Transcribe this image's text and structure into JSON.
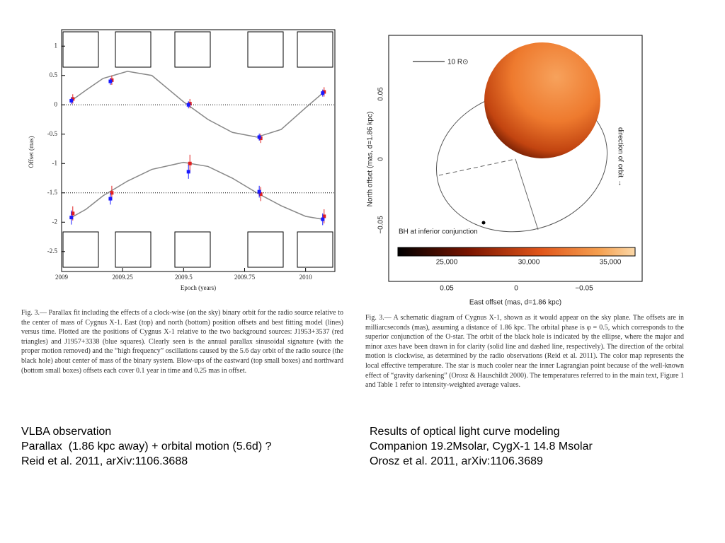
{
  "chart_data": {
    "type": "scatter",
    "x_label": "Epoch (years)",
    "y_label": "Offset (mas)",
    "xlim": [
      2009,
      2010.12
    ],
    "xticks": [
      2009,
      2009.25,
      2009.5,
      2009.75,
      2010
    ],
    "ylim": [
      -2.84,
      1.28
    ],
    "yticks": [
      1,
      0.5,
      0,
      -0.5,
      -1,
      -1.5,
      -2,
      -2.5
    ],
    "hlines": [
      0,
      -1.5
    ],
    "series": [
      {
        "style": "line",
        "color": "#888888",
        "x": [
          2009.04,
          2009.1,
          2009.17,
          2009.27,
          2009.37,
          2009.5,
          2009.6,
          2009.7,
          2009.8,
          2009.9,
          2010,
          2010.07
        ],
        "values": [
          0.07,
          0.25,
          0.45,
          0.57,
          0.5,
          0.05,
          -0.25,
          -0.47,
          -0.55,
          -0.42,
          -0.05,
          0.2
        ]
      },
      {
        "style": "line",
        "color": "#888888",
        "x": [
          2009.04,
          2009.1,
          2009.17,
          2009.27,
          2009.37,
          2009.5,
          2009.6,
          2009.7,
          2009.8,
          2009.9,
          2010,
          2010.07
        ],
        "values": [
          -1.92,
          -1.78,
          -1.55,
          -1.3,
          -1.1,
          -0.98,
          -1.05,
          -1.25,
          -1.5,
          -1.72,
          -1.9,
          -1.95
        ]
      },
      {
        "style": "points",
        "color": "#e02020",
        "x": [
          2009.04,
          2009.2,
          2009.52,
          2009.81,
          2010.07,
          2009.04,
          2009.2,
          2009.52,
          2009.81,
          2010.07
        ],
        "values": [
          0.1,
          0.42,
          0.02,
          -0.57,
          0.22,
          -1.85,
          -1.5,
          -1.0,
          -1.52,
          -1.9
        ],
        "errors": [
          0.08,
          0.08,
          0.08,
          0.08,
          0.08,
          0.12,
          0.12,
          0.15,
          0.12,
          0.12
        ]
      },
      {
        "style": "points",
        "color": "#1a1aff",
        "x": [
          2009.04,
          2009.2,
          2009.52,
          2009.81,
          2010.07,
          2009.04,
          2009.2,
          2009.52,
          2009.81,
          2010.07
        ],
        "values": [
          0.07,
          0.4,
          0.0,
          -0.55,
          0.2,
          -1.92,
          -1.6,
          -1.14,
          -1.48,
          -1.95
        ],
        "errors": [
          0.06,
          0.06,
          0.06,
          0.06,
          0.06,
          0.12,
          0.1,
          0.12,
          0.1,
          0.1
        ]
      }
    ]
  },
  "left_caption": "Fig. 3.— Parallax fit including the effects of a clock-wise (on the sky) binary orbit for the radio source relative to the center of mass of Cygnus X-1. East (top) and north (bottom) position offsets and best fitting model (lines) versus time. Plotted are the positions of Cygnus X-1 relative to the two background sources: J1953+3537 (red triangles) and J1957+3338 (blue squares). Clearly seen is the annual parallax sinusoidal signature (with the proper motion removed) and the “high frequency” oscillations caused by the 5.6 day orbit of the radio source (the black hole) about center of mass of the binary system. Blow-ups of the eastward (top small boxes) and northward (bottom small boxes) offsets each cover 0.1 year in time and 0.25 mas in offset.",
  "right_figure": {
    "scale_label": "10 R⊙",
    "bh_label": "BH at inferior conjunction",
    "direction_label": "direction of orbit →",
    "x_label": "East offset (mas, d=1.86 kpc)",
    "y_label": "North offset (mas, d=1.86 kpc)",
    "xtick_labels": [
      "0.05",
      "0",
      "−0.05"
    ],
    "ytick_labels": [
      "0.05",
      "0",
      "−0.05"
    ],
    "colorbar_labels": [
      "25,000",
      "30,000",
      "35,000"
    ]
  },
  "right_caption": "Fig. 3.— A schematic diagram of Cygnus X-1, shown as it would appear on the sky plane. The offsets are in milliarcseconds (mas), assuming a distance of 1.86 kpc. The orbital phase is φ = 0.5, which corresponds to the superior conjunction of the O-star. The orbit of the black hole is indicated by the ellipse, where the major and minor axes have been drawn in for clarity (solid line and dashed line, respectively). The direction of the orbital motion is clockwise, as determined by the radio observations (Reid et al. 2011). The color map represents the local effective temperature. The star is much cooler near the inner Lagrangian point because of the well-known effect of “gravity darkening” (Orosz & Hauschildt 2000). The temperatures referred to in the main text, Figure 1 and Table 1 refer to intensity-weighted average values.",
  "notes": {
    "left": [
      "VLBA observation",
      "Parallax  (1.86 kpc away) + orbital motion (5.6d) ?",
      "Reid et al. 2011, arXiv:1106.3688"
    ],
    "right": [
      "Results of optical light curve modeling",
      "Companion 19.2Msolar, CygX-1 14.8 Msolar",
      "Orosz et al. 2011, arXiv:1106.3689"
    ]
  }
}
